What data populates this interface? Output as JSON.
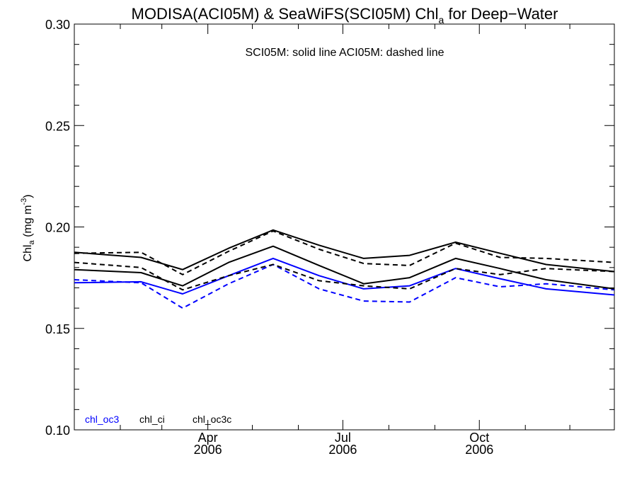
{
  "chart_data": {
    "type": "line",
    "title": "MODISA(ACI05M) & SeaWiFS(SCI05M)  Chl",
    "title_sub": "a",
    "title_tail": " for Deep−Water",
    "annotation": "SCI05M: solid line   ACI05M: dashed line",
    "ylabel": "Chl",
    "ylabel_sub": "a",
    "ylabel_unit": " (mg m",
    "ylabel_sup": "-3",
    "ylabel_close": ")",
    "ylim": [
      0.1,
      0.3
    ],
    "yticks": [
      {
        "value": 0.1,
        "label": "0.10"
      },
      {
        "value": 0.15,
        "label": "0.15"
      },
      {
        "value": 0.2,
        "label": "0.20"
      },
      {
        "value": 0.25,
        "label": "0.25"
      },
      {
        "value": 0.3,
        "label": "0.30"
      }
    ],
    "xlim": [
      "2006-01-01",
      "2006-12-31"
    ],
    "xticks": [
      {
        "date": "2006-04-01",
        "label": "Apr",
        "label2": "2006"
      },
      {
        "date": "2006-07-01",
        "label": "Jul",
        "label2": "2006"
      },
      {
        "date": "2006-10-01",
        "label": "Oct",
        "label2": "2006"
      }
    ],
    "x": [
      "2006-01-01",
      "2006-02-15",
      "2006-03-15",
      "2006-04-15",
      "2006-05-15",
      "2006-06-15",
      "2006-07-15",
      "2006-08-15",
      "2006-09-15",
      "2006-10-15",
      "2006-11-15",
      "2006-12-31"
    ],
    "series": [
      {
        "name": "chl_oc3",
        "dataset": "SCI05M",
        "style": "solid",
        "color": "#0000ff",
        "values": [
          0.1725,
          0.173,
          0.167,
          0.176,
          0.1845,
          0.176,
          0.1695,
          0.171,
          0.1795,
          0.1745,
          0.1695,
          0.1665
        ]
      },
      {
        "name": "chl_oc3",
        "dataset": "ACI05M",
        "style": "dashed",
        "color": "#0000ff",
        "values": [
          0.174,
          0.1725,
          0.16,
          0.172,
          0.1815,
          0.1695,
          0.1635,
          0.163,
          0.175,
          0.1705,
          0.172,
          0.169
        ]
      },
      {
        "name": "chl_ci",
        "dataset": "SCI05M",
        "style": "solid",
        "color": "#000000",
        "values": [
          0.1875,
          0.185,
          0.179,
          0.1895,
          0.1985,
          0.191,
          0.1845,
          0.186,
          0.1925,
          0.187,
          0.1815,
          0.178
        ]
      },
      {
        "name": "chl_ci",
        "dataset": "ACI05M",
        "style": "dashed",
        "color": "#000000",
        "values": [
          0.187,
          0.1875,
          0.1765,
          0.188,
          0.198,
          0.189,
          0.182,
          0.181,
          0.192,
          0.185,
          0.1845,
          0.1825
        ]
      },
      {
        "name": "chl_oc3c",
        "dataset": "SCI05M",
        "style": "solid",
        "color": "#000000",
        "values": [
          0.179,
          0.1775,
          0.171,
          0.1825,
          0.1905,
          0.181,
          0.172,
          0.175,
          0.1845,
          0.1795,
          0.174,
          0.1695
        ]
      },
      {
        "name": "chl_oc3c",
        "dataset": "ACI05M",
        "style": "dashed",
        "color": "#000000",
        "values": [
          0.1825,
          0.18,
          0.169,
          0.176,
          0.1815,
          0.1735,
          0.171,
          0.1695,
          0.1795,
          0.1765,
          0.1795,
          0.178
        ]
      }
    ],
    "legend": [
      {
        "label": "chl_oc3",
        "color": "#0000ff"
      },
      {
        "label": "chl_ci",
        "color": "#000000"
      },
      {
        "label": "chl_oc3c",
        "color": "#000000"
      }
    ],
    "legend_placement": "bottom-left",
    "grid": false
  }
}
